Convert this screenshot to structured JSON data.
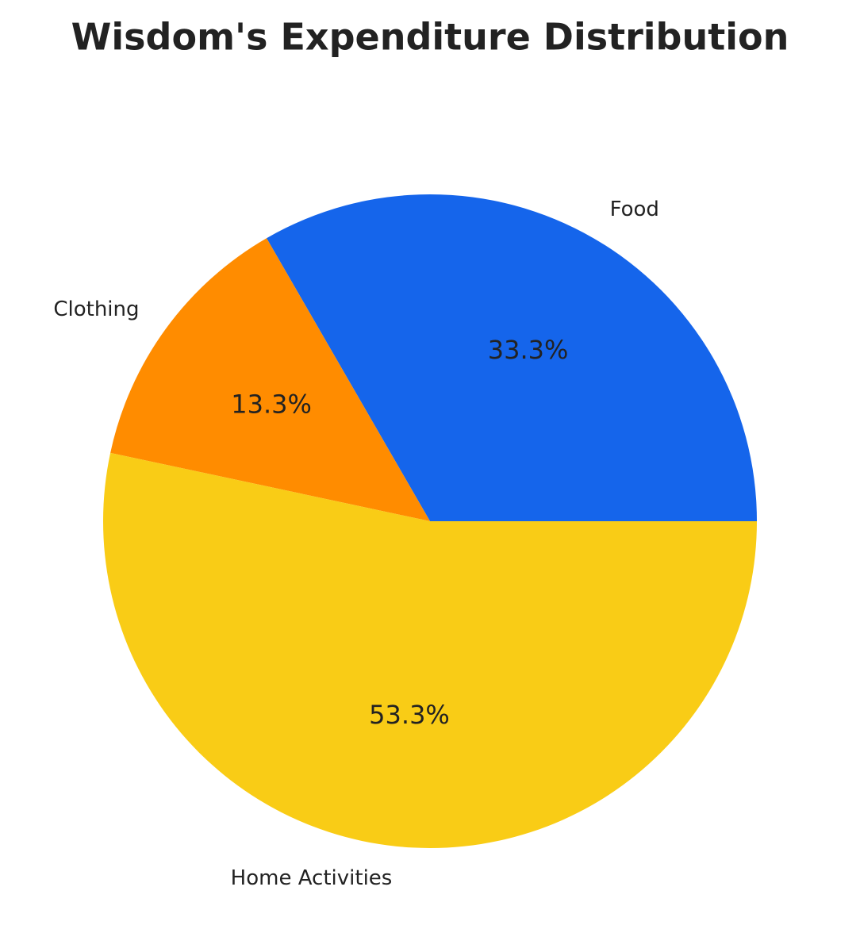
{
  "chart_data": {
    "type": "pie",
    "title": "Wisdom's Expenditure Distribution",
    "categories": [
      "Food",
      "Clothing",
      "Home Activities"
    ],
    "values": [
      33.3,
      13.3,
      53.3
    ],
    "value_labels": [
      "33.3%",
      "13.3%",
      "53.3%"
    ],
    "colors": [
      "#1565eb",
      "#ff8c00",
      "#f9cc16"
    ]
  }
}
